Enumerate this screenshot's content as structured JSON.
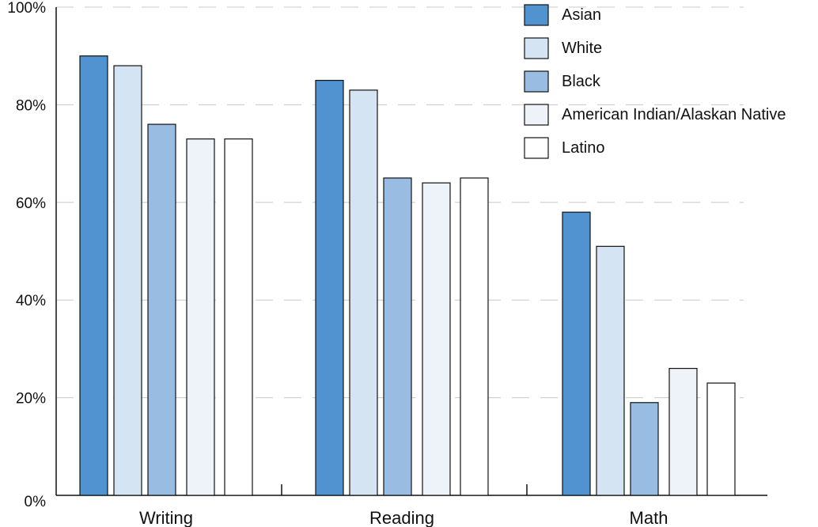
{
  "chart_data": {
    "type": "bar",
    "title": "",
    "xlabel": "",
    "ylabel": "",
    "ylim": [
      0,
      100
    ],
    "y_ticks": [
      "0%",
      "20%",
      "40%",
      "60%",
      "80%",
      "100%"
    ],
    "grid": true,
    "legend_position": "top-right",
    "categories": [
      "Writing",
      "Reading",
      "Math"
    ],
    "series": [
      {
        "name": "Asian",
        "color": "#5192d0",
        "values": [
          90,
          85,
          58
        ]
      },
      {
        "name": "White",
        "color": "#d4e4f2",
        "values": [
          88,
          83,
          51
        ]
      },
      {
        "name": "Black",
        "color": "#99bde2",
        "values": [
          76,
          65,
          19
        ]
      },
      {
        "name": "American Indian/Alaskan Native",
        "color": "#eef3fa",
        "values": [
          73,
          64,
          26
        ]
      },
      {
        "name": "Latino",
        "color": "#ffffff",
        "values": [
          73,
          65,
          23
        ]
      }
    ]
  }
}
